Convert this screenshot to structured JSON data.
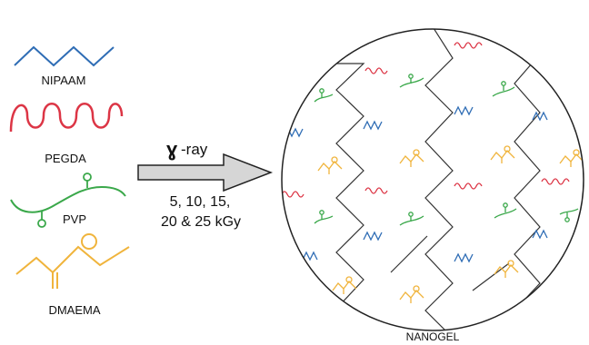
{
  "legend": {
    "nipaam": {
      "label": "NIPAAM",
      "color": "#2f6db5"
    },
    "pegda": {
      "label": "PEGDA",
      "color": "#dc3545"
    },
    "pvp": {
      "label": "PVP",
      "color": "#3aa84a"
    },
    "dmaema": {
      "label": "DMAEMA",
      "color": "#f0b43c"
    }
  },
  "process": {
    "radiation_symbol": "ɣ",
    "radiation_label": "-ray",
    "dose_line1": "5, 10, 15,",
    "dose_line2": "20 & 25 kGy"
  },
  "product": {
    "label": "NANOGEL"
  },
  "colors": {
    "outline": "#222222",
    "arrow_fill": "#d6d6d6",
    "chain": "#333333"
  }
}
